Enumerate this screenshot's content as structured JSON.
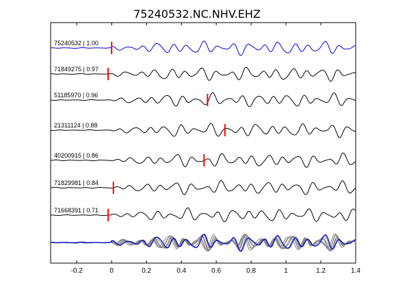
{
  "chart_data": {
    "type": "line",
    "title": "75240532.NC.NHV.EHZ",
    "xlabel": "",
    "ylabel": "",
    "xlim": [
      -0.35,
      1.4
    ],
    "x_ticks": [
      -0.2,
      0,
      0.2,
      0.4,
      0.6,
      0.8,
      1,
      1.2,
      1.4
    ],
    "x_tick_labels": [
      "-0.2",
      "0",
      "0.2",
      "0.4",
      "0.6",
      "0.8",
      "1",
      "1.2",
      "1.4"
    ],
    "grid": false,
    "colors": {
      "reference": "#0000cc",
      "trace": "#000000",
      "stack_gray": "#808080",
      "pick": "#ff0000",
      "axes": "#000000"
    },
    "traces": [
      {
        "id": "75240532",
        "cc": "1.00",
        "label": "75240532 | 1.00",
        "pick_time": 0.0,
        "color": "blue",
        "seed": 1.3
      },
      {
        "id": "71849275",
        "cc": "0.97",
        "label": "71849275 | 0.97",
        "pick_time": -0.02,
        "color": "black",
        "seed": 2.1
      },
      {
        "id": "51185970",
        "cc": "0.96",
        "label": "51185970 | 0.96",
        "pick_time": 0.55,
        "color": "black",
        "seed": 3.7
      },
      {
        "id": "21311124",
        "cc": "0.88",
        "label": "21311124 | 0.88",
        "pick_time": 0.65,
        "color": "black",
        "seed": 4.4
      },
      {
        "id": "40200915",
        "cc": "0.86",
        "label": "40200915 | 0.86",
        "pick_time": 0.53,
        "color": "black",
        "seed": 5.9
      },
      {
        "id": "71829981",
        "cc": "0.84",
        "label": "71829981 | 0.84",
        "pick_time": 0.01,
        "color": "black",
        "seed": 6.2
      },
      {
        "id": "71668391",
        "cc": "0.71",
        "label": "71668391 | 0.71",
        "pick_time": -0.02,
        "color": "black",
        "seed": 7.8
      }
    ],
    "stack": {
      "description": "overlay of all traces",
      "highlight": "blue"
    }
  }
}
